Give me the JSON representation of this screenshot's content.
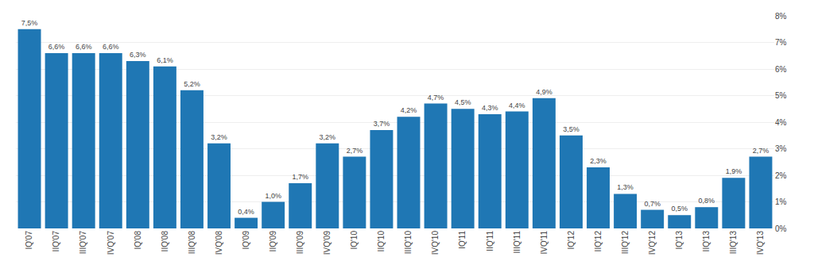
{
  "chart_data": {
    "type": "bar",
    "categories": [
      "IQ'07",
      "IIQ'07",
      "IIIQ'07",
      "IVQ'07",
      "IQ'08",
      "IIQ'08",
      "IIIQ'08",
      "IVQ'08",
      "IQ'09",
      "IIQ'09",
      "IIIQ'09",
      "IVQ'09",
      "IQ'10",
      "IIQ'10",
      "IIIQ'10",
      "IVQ'10",
      "IQ'11",
      "IIQ'11",
      "IIIQ'11",
      "IVQ'11",
      "IQ'12",
      "IIQ'12",
      "IIIQ'12",
      "IVQ'12",
      "IQ'13",
      "IIQ'13",
      "IIIQ'13",
      "IVQ'13"
    ],
    "values": [
      7.5,
      6.6,
      6.6,
      6.6,
      6.3,
      6.1,
      5.2,
      3.2,
      0.4,
      1.0,
      1.7,
      3.2,
      2.7,
      3.7,
      4.2,
      4.7,
      4.5,
      4.3,
      4.4,
      4.9,
      3.5,
      2.3,
      1.3,
      0.7,
      0.5,
      0.8,
      1.9,
      2.7
    ],
    "value_labels": [
      "7,5%",
      "6,6%",
      "6,6%",
      "6,6%",
      "6,3%",
      "6,1%",
      "5,2%",
      "3,2%",
      "0,4%",
      "1,0%",
      "1,7%",
      "3,2%",
      "2,7%",
      "3,7%",
      "4,2%",
      "4,7%",
      "4,5%",
      "4,3%",
      "4,4%",
      "4,9%",
      "3,5%",
      "2,3%",
      "1,3%",
      "0,7%",
      "0,5%",
      "0,8%",
      "1,9%",
      "2,7%"
    ],
    "data_labels": true,
    "ylim": [
      0,
      8
    ],
    "yticks": [
      {
        "value": 0,
        "label": "0%"
      },
      {
        "value": 1,
        "label": "1%"
      },
      {
        "value": 2,
        "label": "2%"
      },
      {
        "value": 3,
        "label": "3%"
      },
      {
        "value": 4,
        "label": "4%"
      },
      {
        "value": 5,
        "label": "5%"
      },
      {
        "value": 6,
        "label": "6%"
      },
      {
        "value": 7,
        "label": "7%"
      },
      {
        "value": 8,
        "label": "8%"
      }
    ],
    "grid": true
  }
}
